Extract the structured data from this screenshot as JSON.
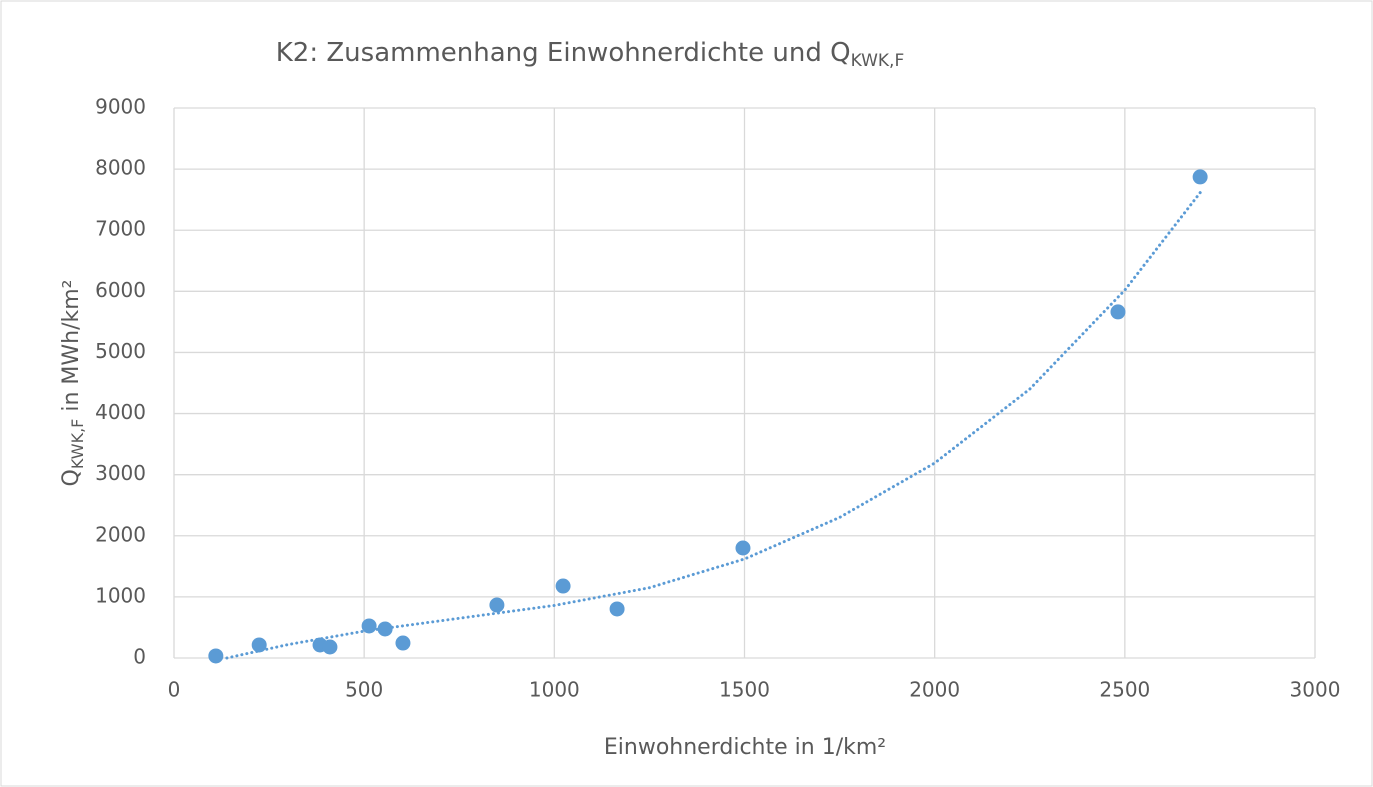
{
  "chart_data": {
    "type": "scatter",
    "title": "K2: Zusammenhang Einwohnerdichte und Q",
    "title_subscript": "KWK,F",
    "x_label": "Einwohnerdichte in 1/km²",
    "y_label": "Q",
    "y_label_subscript": "KWK,F",
    "y_label_suffix": " in MWh/km²",
    "x": [
      110,
      224,
      384,
      410,
      513,
      555,
      602,
      849,
      1023,
      1165,
      1496,
      2482,
      2698
    ],
    "values": [
      33,
      213,
      213,
      180,
      524,
      475,
      245,
      867,
      1178,
      802,
      1800,
      5663,
      7872
    ],
    "color": "#5b9bd5",
    "trendline": {
      "x": [
        139,
        300,
        500,
        750,
        1000,
        1250,
        1500,
        1750,
        2000,
        2250,
        2500,
        2700
      ],
      "values": [
        0,
        220,
        440,
        650,
        860,
        1150,
        1620,
        2300,
        3190,
        4400,
        6020,
        7630
      ],
      "color": "#5b9bd5",
      "style": "dotted"
    },
    "xlim": [
      0,
      3000
    ],
    "xticks": [
      0,
      500,
      1000,
      1500,
      2000,
      2500,
      3000
    ],
    "ylim": [
      0,
      9000
    ],
    "yticks": [
      0,
      1000,
      2000,
      3000,
      4000,
      5000,
      6000,
      7000,
      8000,
      9000
    ],
    "grid": true
  }
}
